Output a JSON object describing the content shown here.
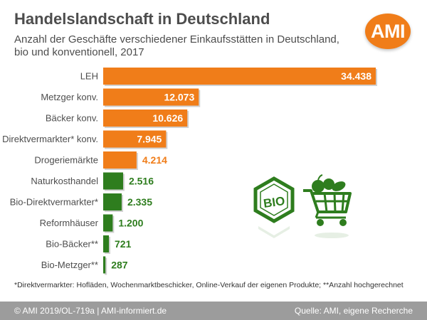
{
  "title": "Handelslandschaft in Deutschland",
  "subtitle": "Anzahl der Geschäfte verschiedener Einkaufsstätten in Deutschland, bio und konventionell, 2017",
  "logo_text": "AMI",
  "bio_badge_text": "BIO",
  "footnote": "*Direktvermarkter: Hofläden, Wochenmarktbeschicker, Online-Verkauf der eigenen Produkte; **Anzahl hochgerechnet",
  "footer": {
    "left": "© AMI 2019/OL-719a | AMI-informiert.de",
    "right": "Quelle: AMI, eigene Recherche"
  },
  "colors": {
    "conventional": "#f07d19",
    "bio": "#2e7d1e",
    "text": "#4d4d4d"
  },
  "icons": [
    "bio-seal-icon",
    "shopping-cart-icon"
  ],
  "chart_data": {
    "type": "bar",
    "orientation": "horizontal",
    "categories": [
      "LEH",
      "Metzger konv.",
      "Bäcker konv.",
      "Direktvermarkter* konv.",
      "Drogeriemärkte",
      "Naturkosthandel",
      "Bio-Direktvermarkter*",
      "Reformhäuser",
      "Bio-Bäcker**",
      "Bio-Metzger**"
    ],
    "values": [
      34438,
      12073,
      10626,
      7945,
      4214,
      2516,
      2335,
      1200,
      721,
      287
    ],
    "value_labels": [
      "34.438",
      "12.073",
      "10.626",
      "7.945",
      "4.214",
      "2.516",
      "2.335",
      "1.200",
      "721",
      "287"
    ],
    "groups": [
      "konventionell",
      "konventionell",
      "konventionell",
      "konventionell",
      "konventionell",
      "bio",
      "bio",
      "bio",
      "bio",
      "bio"
    ],
    "xlim": [
      0,
      34438
    ],
    "grid": false,
    "legend": "none"
  }
}
